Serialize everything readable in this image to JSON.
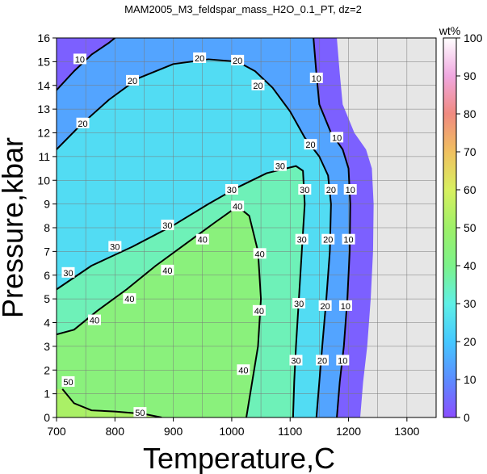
{
  "chart_data": {
    "type": "heatmap",
    "title": "MAM2005_M3_feldspar_mass_H2O_0.1_PT, dz=2",
    "xlabel": "Temperature,C",
    "ylabel": "Pressure,kbar",
    "xlim": [
      700,
      1350
    ],
    "ylim": [
      0,
      16
    ],
    "x_ticks": [
      700,
      800,
      900,
      1000,
      1100,
      1200,
      1300
    ],
    "y_ticks": [
      0,
      1,
      2,
      3,
      4,
      5,
      6,
      7,
      8,
      9,
      10,
      11,
      12,
      13,
      14,
      15,
      16
    ],
    "grid": true,
    "colorbar": {
      "label": "wt%",
      "range": [
        0,
        100
      ],
      "ticks": [
        0,
        10,
        20,
        30,
        40,
        50,
        60,
        70,
        80,
        90,
        100
      ],
      "stops": [
        {
          "v": 0,
          "color": "#8a4dff"
        },
        {
          "v": 10,
          "color": "#5c8cff"
        },
        {
          "v": 20,
          "color": "#45c8ff"
        },
        {
          "v": 30,
          "color": "#5ff0e6"
        },
        {
          "v": 40,
          "color": "#7cf28a"
        },
        {
          "v": 50,
          "color": "#9ef068"
        },
        {
          "v": 60,
          "color": "#d8f060"
        },
        {
          "v": 70,
          "color": "#f0c060"
        },
        {
          "v": 80,
          "color": "#f08a80"
        },
        {
          "v": 90,
          "color": "#f0a8e0"
        },
        {
          "v": 100,
          "color": "#ffffff"
        }
      ]
    },
    "no_data_color": "#e6e6e6",
    "contours": [
      {
        "level": 10,
        "label": "10",
        "points": [
          [
            700,
            13.8
          ],
          [
            730,
            14.6
          ],
          [
            760,
            15.3
          ],
          [
            790,
            15.8
          ],
          [
            800,
            16
          ]
        ]
      },
      {
        "level": 10,
        "label": "10",
        "points": [
          [
            1140,
            16
          ],
          [
            1145,
            14.5
          ],
          [
            1150,
            13.2
          ],
          [
            1170,
            12
          ],
          [
            1190,
            11.3
          ],
          [
            1200,
            10.5
          ],
          [
            1203,
            9
          ],
          [
            1202,
            7
          ],
          [
            1198,
            5
          ],
          [
            1192,
            3
          ],
          [
            1185,
            1.5
          ],
          [
            1180,
            0
          ]
        ]
      },
      {
        "level": 20,
        "label": "20",
        "points": [
          [
            700,
            11.3
          ],
          [
            740,
            12.3
          ],
          [
            790,
            13.4
          ],
          [
            840,
            14.3
          ],
          [
            900,
            14.9
          ],
          [
            960,
            15.1
          ],
          [
            1010,
            15.0
          ],
          [
            1040,
            14.6
          ],
          [
            1070,
            13.9
          ],
          [
            1100,
            12.9
          ],
          [
            1125,
            11.8
          ],
          [
            1150,
            11.0
          ],
          [
            1165,
            10.2
          ],
          [
            1170,
            9
          ],
          [
            1168,
            7
          ],
          [
            1162,
            5
          ],
          [
            1155,
            3
          ],
          [
            1150,
            1.5
          ],
          [
            1145,
            0
          ]
        ]
      },
      {
        "level": 30,
        "label": "30",
        "points": [
          [
            700,
            5.4
          ],
          [
            760,
            6.4
          ],
          [
            830,
            7.2
          ],
          [
            900,
            8.1
          ],
          [
            960,
            9.0
          ],
          [
            1010,
            9.7
          ],
          [
            1060,
            10.3
          ],
          [
            1110,
            10.6
          ],
          [
            1122,
            10.4
          ],
          [
            1125,
            9
          ],
          [
            1120,
            7
          ],
          [
            1115,
            5
          ],
          [
            1110,
            3
          ],
          [
            1107,
            1.5
          ],
          [
            1105,
            0
          ]
        ]
      },
      {
        "level": 40,
        "label": "40",
        "points": [
          [
            700,
            3.5
          ],
          [
            730,
            3.7
          ],
          [
            770,
            4.5
          ],
          [
            820,
            5.4
          ],
          [
            870,
            6.4
          ],
          [
            920,
            7.3
          ],
          [
            970,
            8.2
          ],
          [
            1010,
            8.9
          ],
          [
            1030,
            8.5
          ],
          [
            1045,
            7
          ],
          [
            1050,
            5
          ],
          [
            1045,
            3
          ],
          [
            1035,
            1.5
          ],
          [
            1025,
            0
          ]
        ]
      },
      {
        "level": 50,
        "label": "50",
        "points": [
          [
            710,
            1.2
          ],
          [
            730,
            0.6
          ],
          [
            760,
            0.3
          ],
          [
            800,
            0.25
          ],
          [
            850,
            0.15
          ],
          [
            880,
            0
          ]
        ]
      }
    ],
    "contour_labels": [
      {
        "text": "10",
        "x": 740,
        "y": 15.1
      },
      {
        "text": "20",
        "x": 945,
        "y": 15.15
      },
      {
        "text": "20",
        "x": 1010,
        "y": 15.05
      },
      {
        "text": "20",
        "x": 830,
        "y": 14.2
      },
      {
        "text": "20",
        "x": 745,
        "y": 12.4
      },
      {
        "text": "20",
        "x": 1045,
        "y": 14.0
      },
      {
        "text": "10",
        "x": 1145,
        "y": 14.3
      },
      {
        "text": "10",
        "x": 1180,
        "y": 11.8
      },
      {
        "text": "20",
        "x": 1135,
        "y": 11.5
      },
      {
        "text": "30",
        "x": 1083,
        "y": 10.6
      },
      {
        "text": "30",
        "x": 1000,
        "y": 9.6
      },
      {
        "text": "30",
        "x": 890,
        "y": 8.1
      },
      {
        "text": "30",
        "x": 800,
        "y": 7.2
      },
      {
        "text": "30",
        "x": 720,
        "y": 6.1
      },
      {
        "text": "40",
        "x": 1010,
        "y": 8.9
      },
      {
        "text": "40",
        "x": 950,
        "y": 7.5
      },
      {
        "text": "40",
        "x": 890,
        "y": 6.2
      },
      {
        "text": "40",
        "x": 825,
        "y": 5.0
      },
      {
        "text": "40",
        "x": 765,
        "y": 4.1
      },
      {
        "text": "40",
        "x": 1048,
        "y": 6.9
      },
      {
        "text": "40",
        "x": 1047,
        "y": 4.5
      },
      {
        "text": "40",
        "x": 1020,
        "y": 2.0
      },
      {
        "text": "30",
        "x": 1125,
        "y": 9.6
      },
      {
        "text": "30",
        "x": 1120,
        "y": 7.5
      },
      {
        "text": "30",
        "x": 1115,
        "y": 4.8
      },
      {
        "text": "30",
        "x": 1110,
        "y": 2.4
      },
      {
        "text": "20",
        "x": 1170,
        "y": 9.6
      },
      {
        "text": "20",
        "x": 1165,
        "y": 7.5
      },
      {
        "text": "20",
        "x": 1160,
        "y": 4.7
      },
      {
        "text": "20",
        "x": 1155,
        "y": 2.4
      },
      {
        "text": "10",
        "x": 1203,
        "y": 9.6
      },
      {
        "text": "10",
        "x": 1200,
        "y": 7.5
      },
      {
        "text": "10",
        "x": 1195,
        "y": 4.7
      },
      {
        "text": "10",
        "x": 1190,
        "y": 2.4
      },
      {
        "text": "50",
        "x": 720,
        "y": 1.5
      },
      {
        "text": "50",
        "x": 843,
        "y": 0.2
      }
    ]
  }
}
